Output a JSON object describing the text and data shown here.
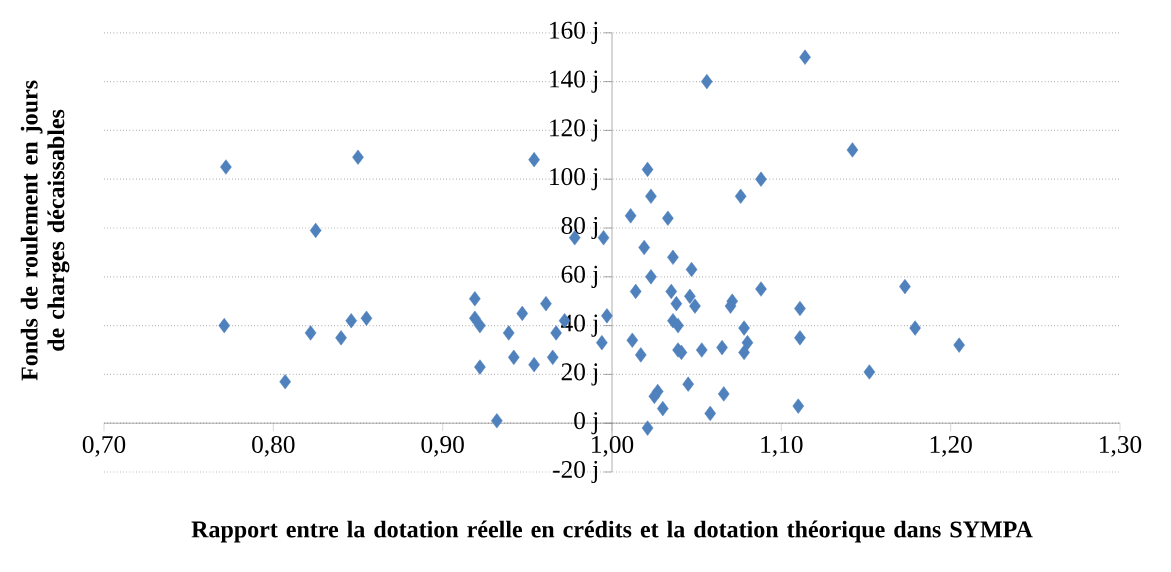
{
  "chart_data": {
    "type": "scatter",
    "xlabel": "Rapport entre la dotation réelle en crédits et la dotation théorique dans SYMPA",
    "ylabel": "Fonds de roulement en jours de charges décaissables",
    "x": [
      0.772,
      0.825,
      0.85,
      0.954,
      0.978,
      0.995,
      1.011,
      1.056,
      1.114,
      1.021,
      1.023,
      1.033,
      1.088,
      1.076,
      1.142,
      1.019,
      0.771,
      0.807,
      0.822,
      0.84,
      0.846,
      0.855,
      0.919,
      0.919,
      0.922,
      0.922,
      0.932,
      0.939,
      0.942,
      0.947,
      0.954,
      0.961,
      0.965,
      0.972,
      0.967,
      0.994,
      0.997,
      1.036,
      1.047,
      1.023,
      1.014,
      1.035,
      1.038,
      1.046,
      1.049,
      1.071,
      1.07,
      1.088,
      1.111,
      1.173,
      1.036,
      1.039,
      1.078,
      1.111,
      1.179,
      1.205,
      1.012,
      1.017,
      1.039,
      1.041,
      1.053,
      1.065,
      1.08,
      1.078,
      1.152,
      1.045,
      1.027,
      1.025,
      1.066,
      1.03,
      1.058,
      1.11,
      1.021
    ],
    "values": [
      105,
      79,
      109,
      108,
      76,
      76,
      85,
      140,
      150,
      104,
      93,
      84,
      100,
      93,
      112,
      72,
      40,
      17,
      37,
      35,
      42,
      43,
      51,
      43,
      40,
      23,
      1,
      37,
      27,
      45,
      24,
      49,
      27,
      42,
      37,
      33,
      44,
      68,
      63,
      60,
      54,
      54,
      49,
      52,
      48,
      50,
      48,
      55,
      47,
      56,
      42,
      40,
      39,
      35,
      39,
      32,
      34,
      28,
      30,
      29,
      30,
      31,
      33,
      29,
      21,
      16,
      13,
      11,
      12,
      6,
      4,
      7,
      -2
    ],
    "color": "#4f81bd",
    "marker": "diamond",
    "grid": "y",
    "xlim": [
      0.7,
      1.3
    ],
    "ylim": [
      -20,
      160
    ],
    "xticks": [
      {
        "value": 0.7,
        "label": "0,70"
      },
      {
        "value": 0.8,
        "label": "0,80"
      },
      {
        "value": 0.9,
        "label": "0,90"
      },
      {
        "value": 1.0,
        "label": "1,00"
      },
      {
        "value": 1.1,
        "label": "1,10"
      },
      {
        "value": 1.2,
        "label": "1,20"
      },
      {
        "value": 1.3,
        "label": "1,30"
      }
    ],
    "yticks": [
      {
        "value": -20,
        "label": "-20 j"
      },
      {
        "value": 0,
        "label": "0 j"
      },
      {
        "value": 20,
        "label": "20 j"
      },
      {
        "value": 40,
        "label": "40 j"
      },
      {
        "value": 60,
        "label": "60 j"
      },
      {
        "value": 80,
        "label": "80 j"
      },
      {
        "value": 100,
        "label": "100 j"
      },
      {
        "value": 120,
        "label": "120 j"
      },
      {
        "value": 140,
        "label": "140 j"
      },
      {
        "value": 160,
        "label": "160 j"
      }
    ]
  }
}
